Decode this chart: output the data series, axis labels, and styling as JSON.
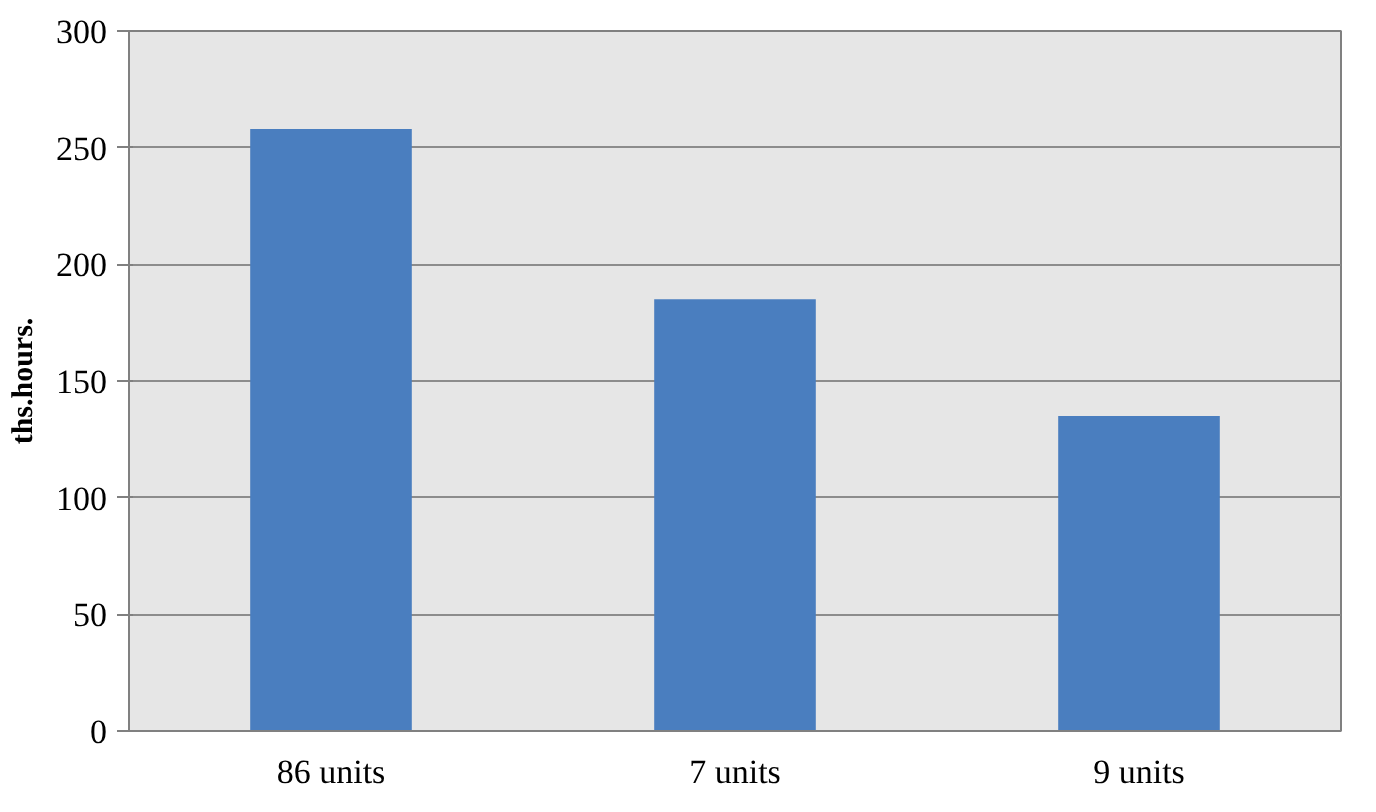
{
  "chart_data": {
    "type": "bar",
    "ylabel": "ths.hours.",
    "categories": [
      "86 units",
      "7 units",
      "9 units"
    ],
    "values": [
      258,
      185,
      135
    ],
    "color": "#4a7ebf",
    "ylim": [
      0,
      300
    ],
    "yticks": [
      0,
      50,
      100,
      150,
      200,
      250,
      300
    ],
    "grid": "y"
  }
}
